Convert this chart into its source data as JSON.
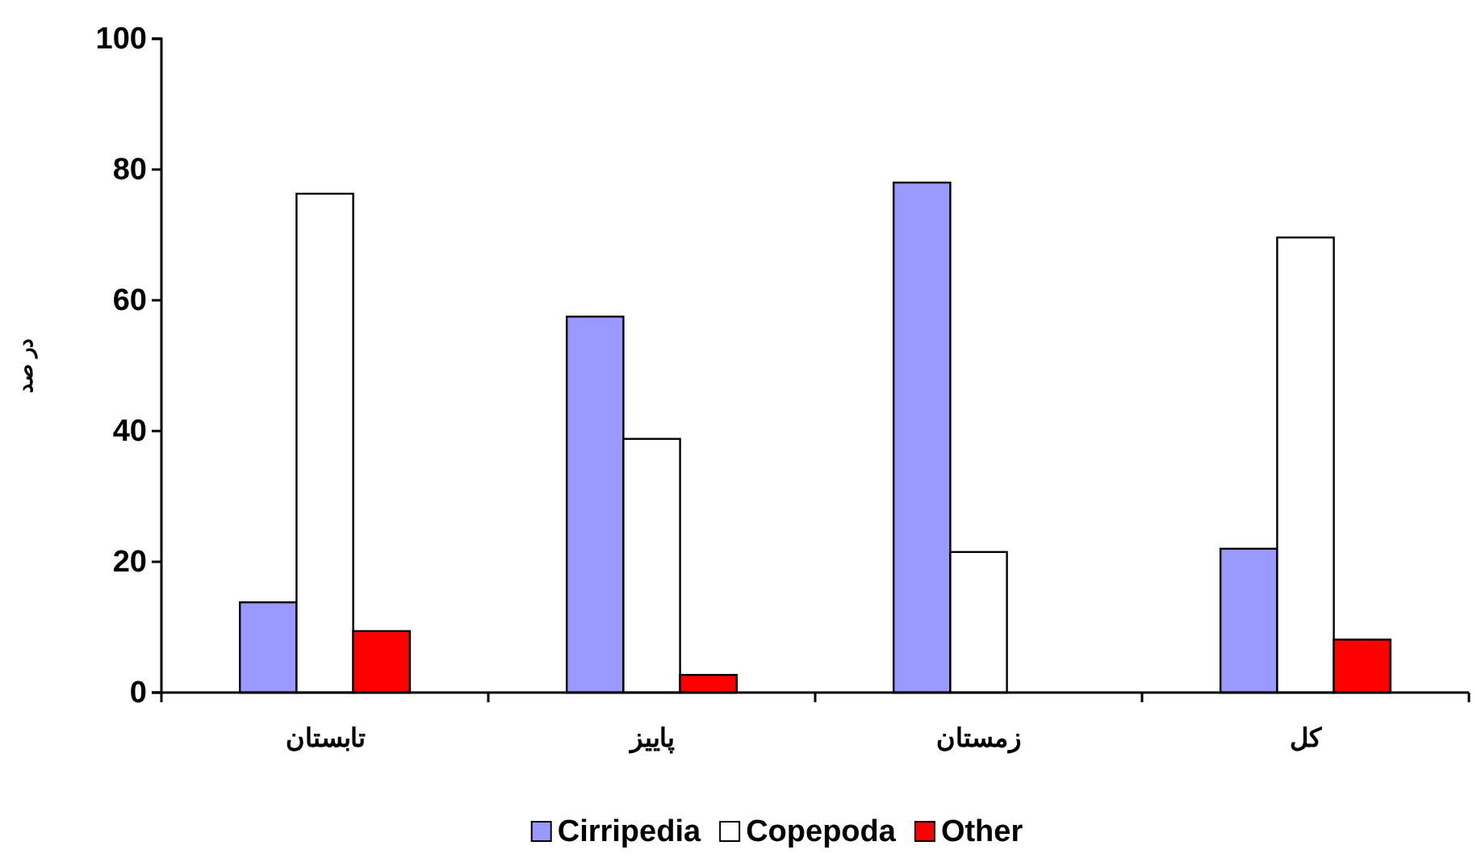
{
  "chart_data": {
    "type": "bar",
    "ylabel": "در صد",
    "categories": [
      "تابستان",
      "پاییز",
      "زمستان",
      "کل"
    ],
    "series": [
      {
        "name": "Cirripedia",
        "color": "#9999ff",
        "values": [
          13.8,
          57.5,
          78,
          22
        ]
      },
      {
        "name": "Copepoda",
        "color": "#ffffff",
        "values": [
          76.3,
          38.8,
          21.5,
          69.6
        ]
      },
      {
        "name": "Other",
        "color": "#ff0000",
        "values": [
          9.4,
          2.7,
          0,
          8.1
        ]
      }
    ],
    "ylim": [
      0,
      100
    ],
    "yticks": [
      0,
      20,
      40,
      60,
      80,
      100
    ],
    "grid": false,
    "legend": "bottom"
  }
}
